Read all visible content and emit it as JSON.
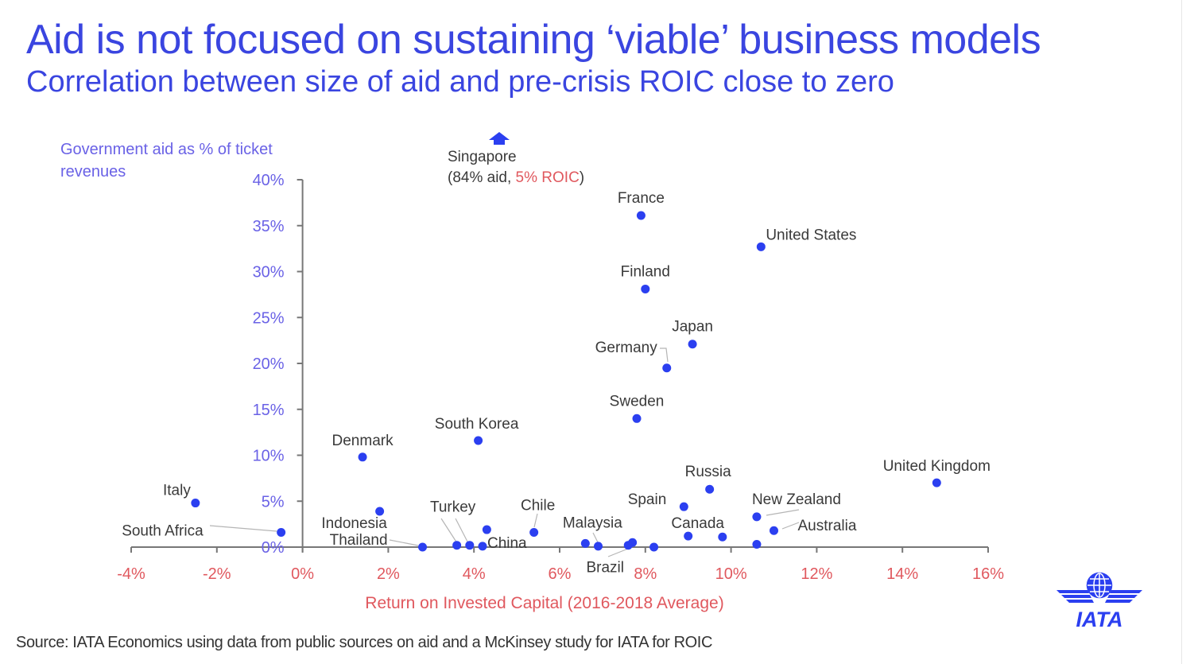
{
  "header": {
    "title": "Aid is not focused on sustaining ‘viable’ business models",
    "subtitle": "Correlation between size of aid and pre-crisis ROIC close to zero"
  },
  "footer": {
    "source": "Source: IATA Economics using data from public sources on aid and a McKinsey study for IATA for ROIC",
    "logo_text": "IATA"
  },
  "colors": {
    "title": "#3a45e0",
    "point": "#2b3ff0",
    "y_axis_text": "#6a62e6",
    "x_axis_text": "#e0585e",
    "label_text": "#3a3a3a"
  },
  "chart_data": {
    "type": "scatter",
    "title": "",
    "ylabel": "Government aid as % of ticket revenues",
    "xlabel": "Return on Invested Capital (2016-2018  Average)",
    "xlim": [
      -4,
      16
    ],
    "ylim": [
      0,
      40
    ],
    "x_ticks": [
      "-4%",
      "-2%",
      "0%",
      "2%",
      "4%",
      "6%",
      "8%",
      "10%",
      "12%",
      "14%",
      "16%"
    ],
    "x_tick_values": [
      -4,
      -2,
      0,
      2,
      4,
      6,
      8,
      10,
      12,
      14,
      16
    ],
    "y_ticks": [
      "0%",
      "5%",
      "10%",
      "15%",
      "20%",
      "25%",
      "30%",
      "35%",
      "40%"
    ],
    "y_tick_values": [
      0,
      5,
      10,
      15,
      20,
      25,
      30,
      35,
      40
    ],
    "grid": false,
    "legend": "none",
    "points": [
      {
        "label": "France",
        "x": 7.9,
        "y": 36.1
      },
      {
        "label": "United States",
        "x": 10.7,
        "y": 32.7
      },
      {
        "label": "Finland",
        "x": 8.0,
        "y": 28.1
      },
      {
        "label": "Japan",
        "x": 9.1,
        "y": 22.1
      },
      {
        "label": "Germany",
        "x": 8.5,
        "y": 19.5
      },
      {
        "label": "Sweden",
        "x": 7.8,
        "y": 14.0
      },
      {
        "label": "South Korea",
        "x": 4.1,
        "y": 11.6
      },
      {
        "label": "Denmark",
        "x": 1.4,
        "y": 9.8
      },
      {
        "label": "United Kingdom",
        "x": 14.8,
        "y": 7.0
      },
      {
        "label": "Russia",
        "x": 9.5,
        "y": 6.3
      },
      {
        "label": "Italy",
        "x": -2.5,
        "y": 4.8
      },
      {
        "label": "Spain",
        "x": 8.9,
        "y": 4.4
      },
      {
        "label": "Indonesia",
        "x": 1.8,
        "y": 3.9
      },
      {
        "label": "New Zealand",
        "x": 10.6,
        "y": 3.3
      },
      {
        "label": "",
        "x": 4.3,
        "y": 1.9
      },
      {
        "label": "Australia",
        "x": 11.0,
        "y": 1.8
      },
      {
        "label": "South Africa",
        "x": -0.5,
        "y": 1.6
      },
      {
        "label": "Chile",
        "x": 5.4,
        "y": 1.6
      },
      {
        "label": "Canada",
        "x": 9.0,
        "y": 1.2
      },
      {
        "label": "",
        "x": 9.8,
        "y": 1.1
      },
      {
        "label": "Malaysia",
        "x": 6.6,
        "y": 0.4
      },
      {
        "label": "",
        "x": 7.7,
        "y": 0.5
      },
      {
        "label": "Brazil",
        "x": 7.6,
        "y": 0.2
      },
      {
        "label": "",
        "x": 10.6,
        "y": 0.3
      },
      {
        "label": "Turkey",
        "x": 3.6,
        "y": 0.2
      },
      {
        "label": "",
        "x": 3.9,
        "y": 0.2
      },
      {
        "label": "China",
        "x": 4.2,
        "y": 0.1
      },
      {
        "label": "",
        "x": 6.9,
        "y": 0.1
      },
      {
        "label": "Thailand",
        "x": 2.8,
        "y": 0.0
      },
      {
        "label": "",
        "x": 8.2,
        "y": 0.0
      }
    ],
    "off_chart_annotation": {
      "label": "Singapore",
      "aid_text": "(84% aid, ",
      "roic_text": "5% ROIC",
      "close_text": ")",
      "x": 5,
      "y": 84
    }
  }
}
